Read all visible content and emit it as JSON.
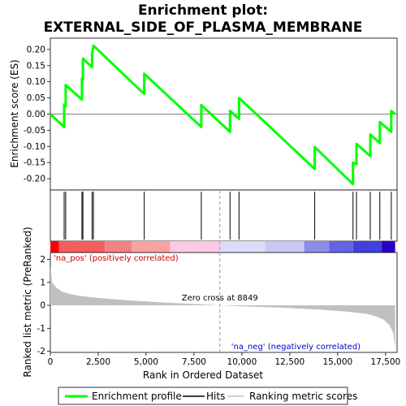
{
  "chart_data": {
    "type": "line",
    "title": "Enrichment plot: EXTERNAL_SIDE_OF_PLASMA_MEMBRANE",
    "title_lines": [
      "Enrichment plot:",
      "EXTERNAL_SIDE_OF_PLASMA_MEMBRANE"
    ],
    "xlabel": "Rank in Ordered Dataset",
    "xlim": [
      0,
      18100
    ],
    "x_ticks": [
      0,
      2500,
      5000,
      7500,
      10000,
      12500,
      15000,
      17500
    ],
    "x_tick_labels": [
      "0",
      "2,500",
      "5,000",
      "7,500",
      "10,000",
      "12,500",
      "15,000",
      "17,500"
    ],
    "es_panel": {
      "ylabel": "Enrichment score (ES)",
      "ylim": [
        -0.235,
        0.235
      ],
      "y_ticks": [
        -0.2,
        -0.15,
        -0.1,
        -0.05,
        0.0,
        0.05,
        0.1,
        0.15,
        0.2
      ],
      "y_tick_labels": [
        "-0.20",
        "-0.15",
        "-0.10",
        "-0.05",
        "0.00",
        "0.05",
        "0.10",
        "0.15",
        "0.20"
      ],
      "color": "#00ff00",
      "series": [
        {
          "x": [
            0,
            720,
            720,
            800,
            800,
            1650,
            1650,
            1700,
            1700,
            2180,
            2180,
            2250,
            2250,
            4900,
            4900,
            7880,
            7880,
            9380,
            9380,
            9850,
            9850,
            13800,
            13800,
            15800,
            15800,
            15980,
            15980,
            16700,
            16700,
            17200,
            17200,
            17800,
            17800,
            18000
          ],
          "y": [
            0.0,
            -0.04,
            0.03,
            0.025,
            0.09,
            0.045,
            0.11,
            0.107,
            0.172,
            0.145,
            0.19,
            0.21,
            0.212,
            0.062,
            0.125,
            -0.04,
            0.028,
            -0.055,
            0.01,
            -0.015,
            0.05,
            -0.17,
            -0.102,
            -0.217,
            -0.15,
            -0.155,
            -0.092,
            -0.13,
            -0.063,
            -0.09,
            -0.025,
            -0.055,
            0.01,
            0.0
          ]
        }
      ]
    },
    "hits": [
      720,
      800,
      1650,
      1700,
      2180,
      2250,
      4900,
      7880,
      9380,
      9850,
      13800,
      15800,
      15980,
      16700,
      17200,
      17800
    ],
    "heatmap_bar": [
      {
        "from": 0,
        "to": 450,
        "color": "#ff0000"
      },
      {
        "from": 450,
        "to": 2850,
        "color": "#f55e5e"
      },
      {
        "from": 2850,
        "to": 4250,
        "color": "#f58181"
      },
      {
        "from": 4250,
        "to": 6250,
        "color": "#f9a2a2"
      },
      {
        "from": 6250,
        "to": 8850,
        "color": "#fdc8e4"
      },
      {
        "from": 8850,
        "to": 11200,
        "color": "#dcdcf8"
      },
      {
        "from": 11200,
        "to": 13250,
        "color": "#c8c8f4"
      },
      {
        "from": 13250,
        "to": 14550,
        "color": "#8c8ced"
      },
      {
        "from": 14550,
        "to": 15800,
        "color": "#6464e4"
      },
      {
        "from": 15800,
        "to": 17300,
        "color": "#4040dc"
      },
      {
        "from": 17300,
        "to": 18000,
        "color": "#2a00c8"
      }
    ],
    "metric_panel": {
      "ylabel": "Ranked list metric (PreRanked)",
      "ylim": [
        -2.05,
        2.3
      ],
      "y_ticks": [
        -2,
        -1,
        0,
        1,
        2
      ],
      "y_tick_labels": [
        "-2",
        "-1",
        "0",
        "1",
        "2"
      ],
      "fill_color": "#c0c0c0",
      "profile": {
        "x": [
          0,
          100,
          300,
          600,
          1000,
          1500,
          2500,
          4000,
          6000,
          8000,
          8849,
          10000,
          12000,
          14000,
          15500,
          16500,
          17000,
          17400,
          17700,
          17900,
          18000
        ],
        "y": [
          1.65,
          1.0,
          0.78,
          0.6,
          0.5,
          0.42,
          0.32,
          0.22,
          0.12,
          0.04,
          0.0,
          -0.04,
          -0.1,
          -0.18,
          -0.27,
          -0.37,
          -0.48,
          -0.62,
          -0.85,
          -1.2,
          -1.92
        ]
      },
      "zero_cross_rank": 8849,
      "zero_cross_label": "Zero cross at 8849",
      "pos_label": "'na_pos' (positively correlated)",
      "neg_label": "'na_neg' (negatively correlated)",
      "pos_color": "#cc0000",
      "neg_color": "#0000cc"
    },
    "legend": {
      "placement": "bottom",
      "items": [
        {
          "label": "Enrichment profile",
          "color": "#00ff00",
          "kind": "thick-line"
        },
        {
          "label": "Hits",
          "color": "#000000",
          "kind": "line"
        },
        {
          "label": "Ranking metric scores",
          "color": "#c0c0c0",
          "kind": "line"
        }
      ]
    }
  }
}
